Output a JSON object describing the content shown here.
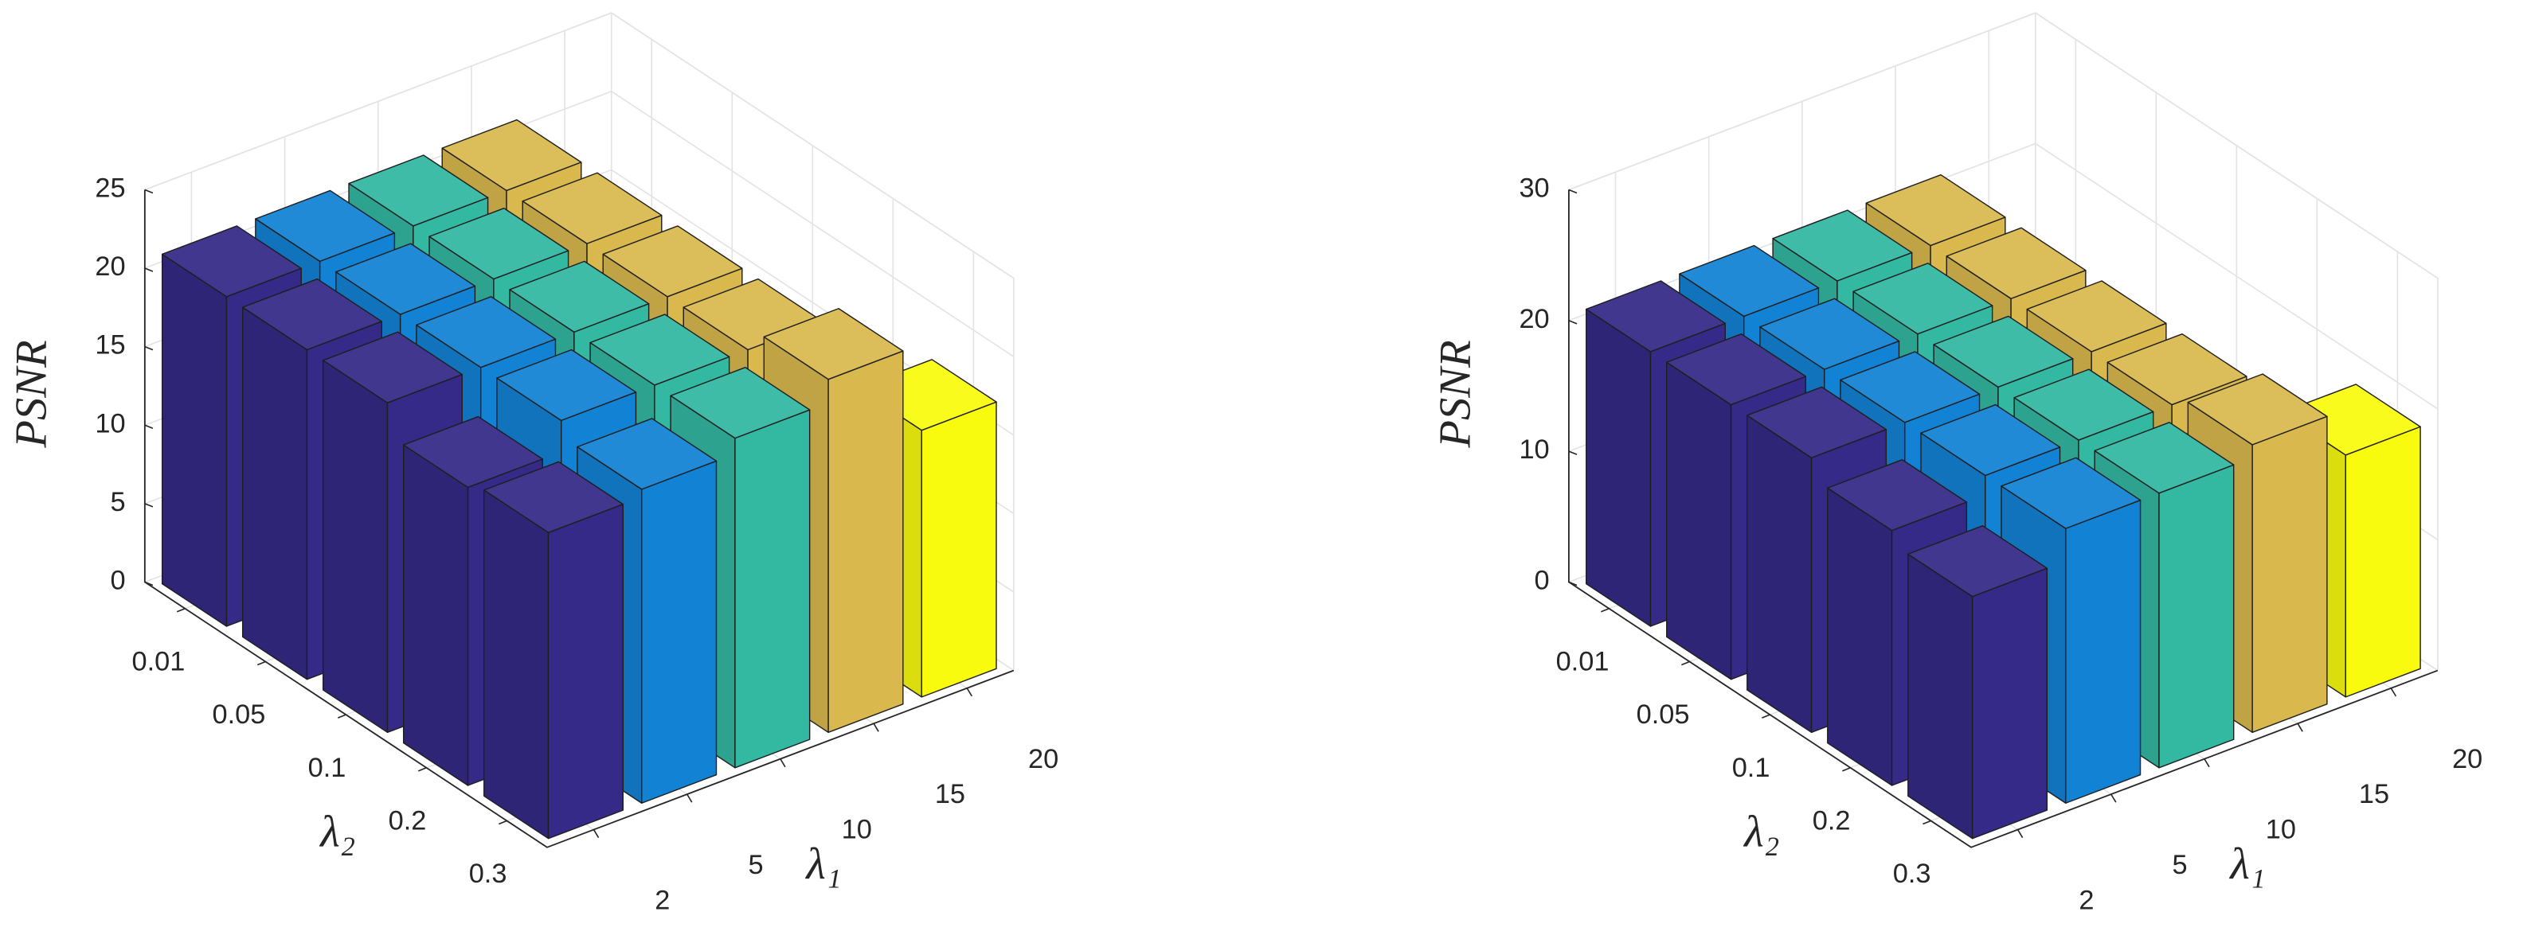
{
  "chart_data": [
    {
      "type": "bar3d",
      "zlabel": "PSNR",
      "xlabel": "λ₁",
      "ylabel": "λ₂",
      "categories": [
        "2",
        "5",
        "10",
        "15",
        "20"
      ],
      "depth_categories": [
        "0.01",
        "0.05",
        "0.1",
        "0.2",
        "0.3"
      ],
      "series": [
        {
          "color": "#352a87",
          "values": [
            21,
            21,
            21,
            19,
            19.5
          ]
        },
        {
          "color": "#1283d4",
          "values": [
            21,
            21,
            21,
            21,
            20
          ]
        },
        {
          "color": "#33b8a1",
          "values": [
            21,
            21,
            21,
            21,
            21
          ]
        },
        {
          "color": "#d9b94e",
          "values": [
            21,
            21,
            21,
            21,
            22.5
          ]
        },
        {
          "color": "#f9fb0e",
          "values": [
            null,
            null,
            null,
            null,
            17
          ]
        }
      ],
      "zlim": [
        0,
        25
      ],
      "zticks": [
        0,
        5,
        10,
        15,
        20,
        25
      ],
      "grid": true
    },
    {
      "type": "bar3d",
      "zlabel": "PSNR",
      "xlabel": "λ₁",
      "ylabel": "λ₂",
      "categories": [
        "2",
        "5",
        "10",
        "15",
        "20"
      ],
      "depth_categories": [
        "0.01",
        "0.05",
        "0.1",
        "0.2",
        "0.3"
      ],
      "series": [
        {
          "color": "#352a87",
          "values": [
            21,
            21,
            21,
            19.5,
            18.5
          ]
        },
        {
          "color": "#1283d4",
          "values": [
            21,
            21,
            21,
            21,
            21
          ]
        },
        {
          "color": "#33b8a1",
          "values": [
            21,
            21,
            21,
            21,
            21
          ]
        },
        {
          "color": "#d9b94e",
          "values": [
            21,
            21,
            21,
            21,
            22
          ]
        },
        {
          "color": "#f9fb0e",
          "values": [
            null,
            null,
            null,
            null,
            18.5
          ]
        }
      ],
      "zlim": [
        0,
        30
      ],
      "zticks": [
        0,
        10,
        20,
        30
      ],
      "grid": true
    }
  ]
}
